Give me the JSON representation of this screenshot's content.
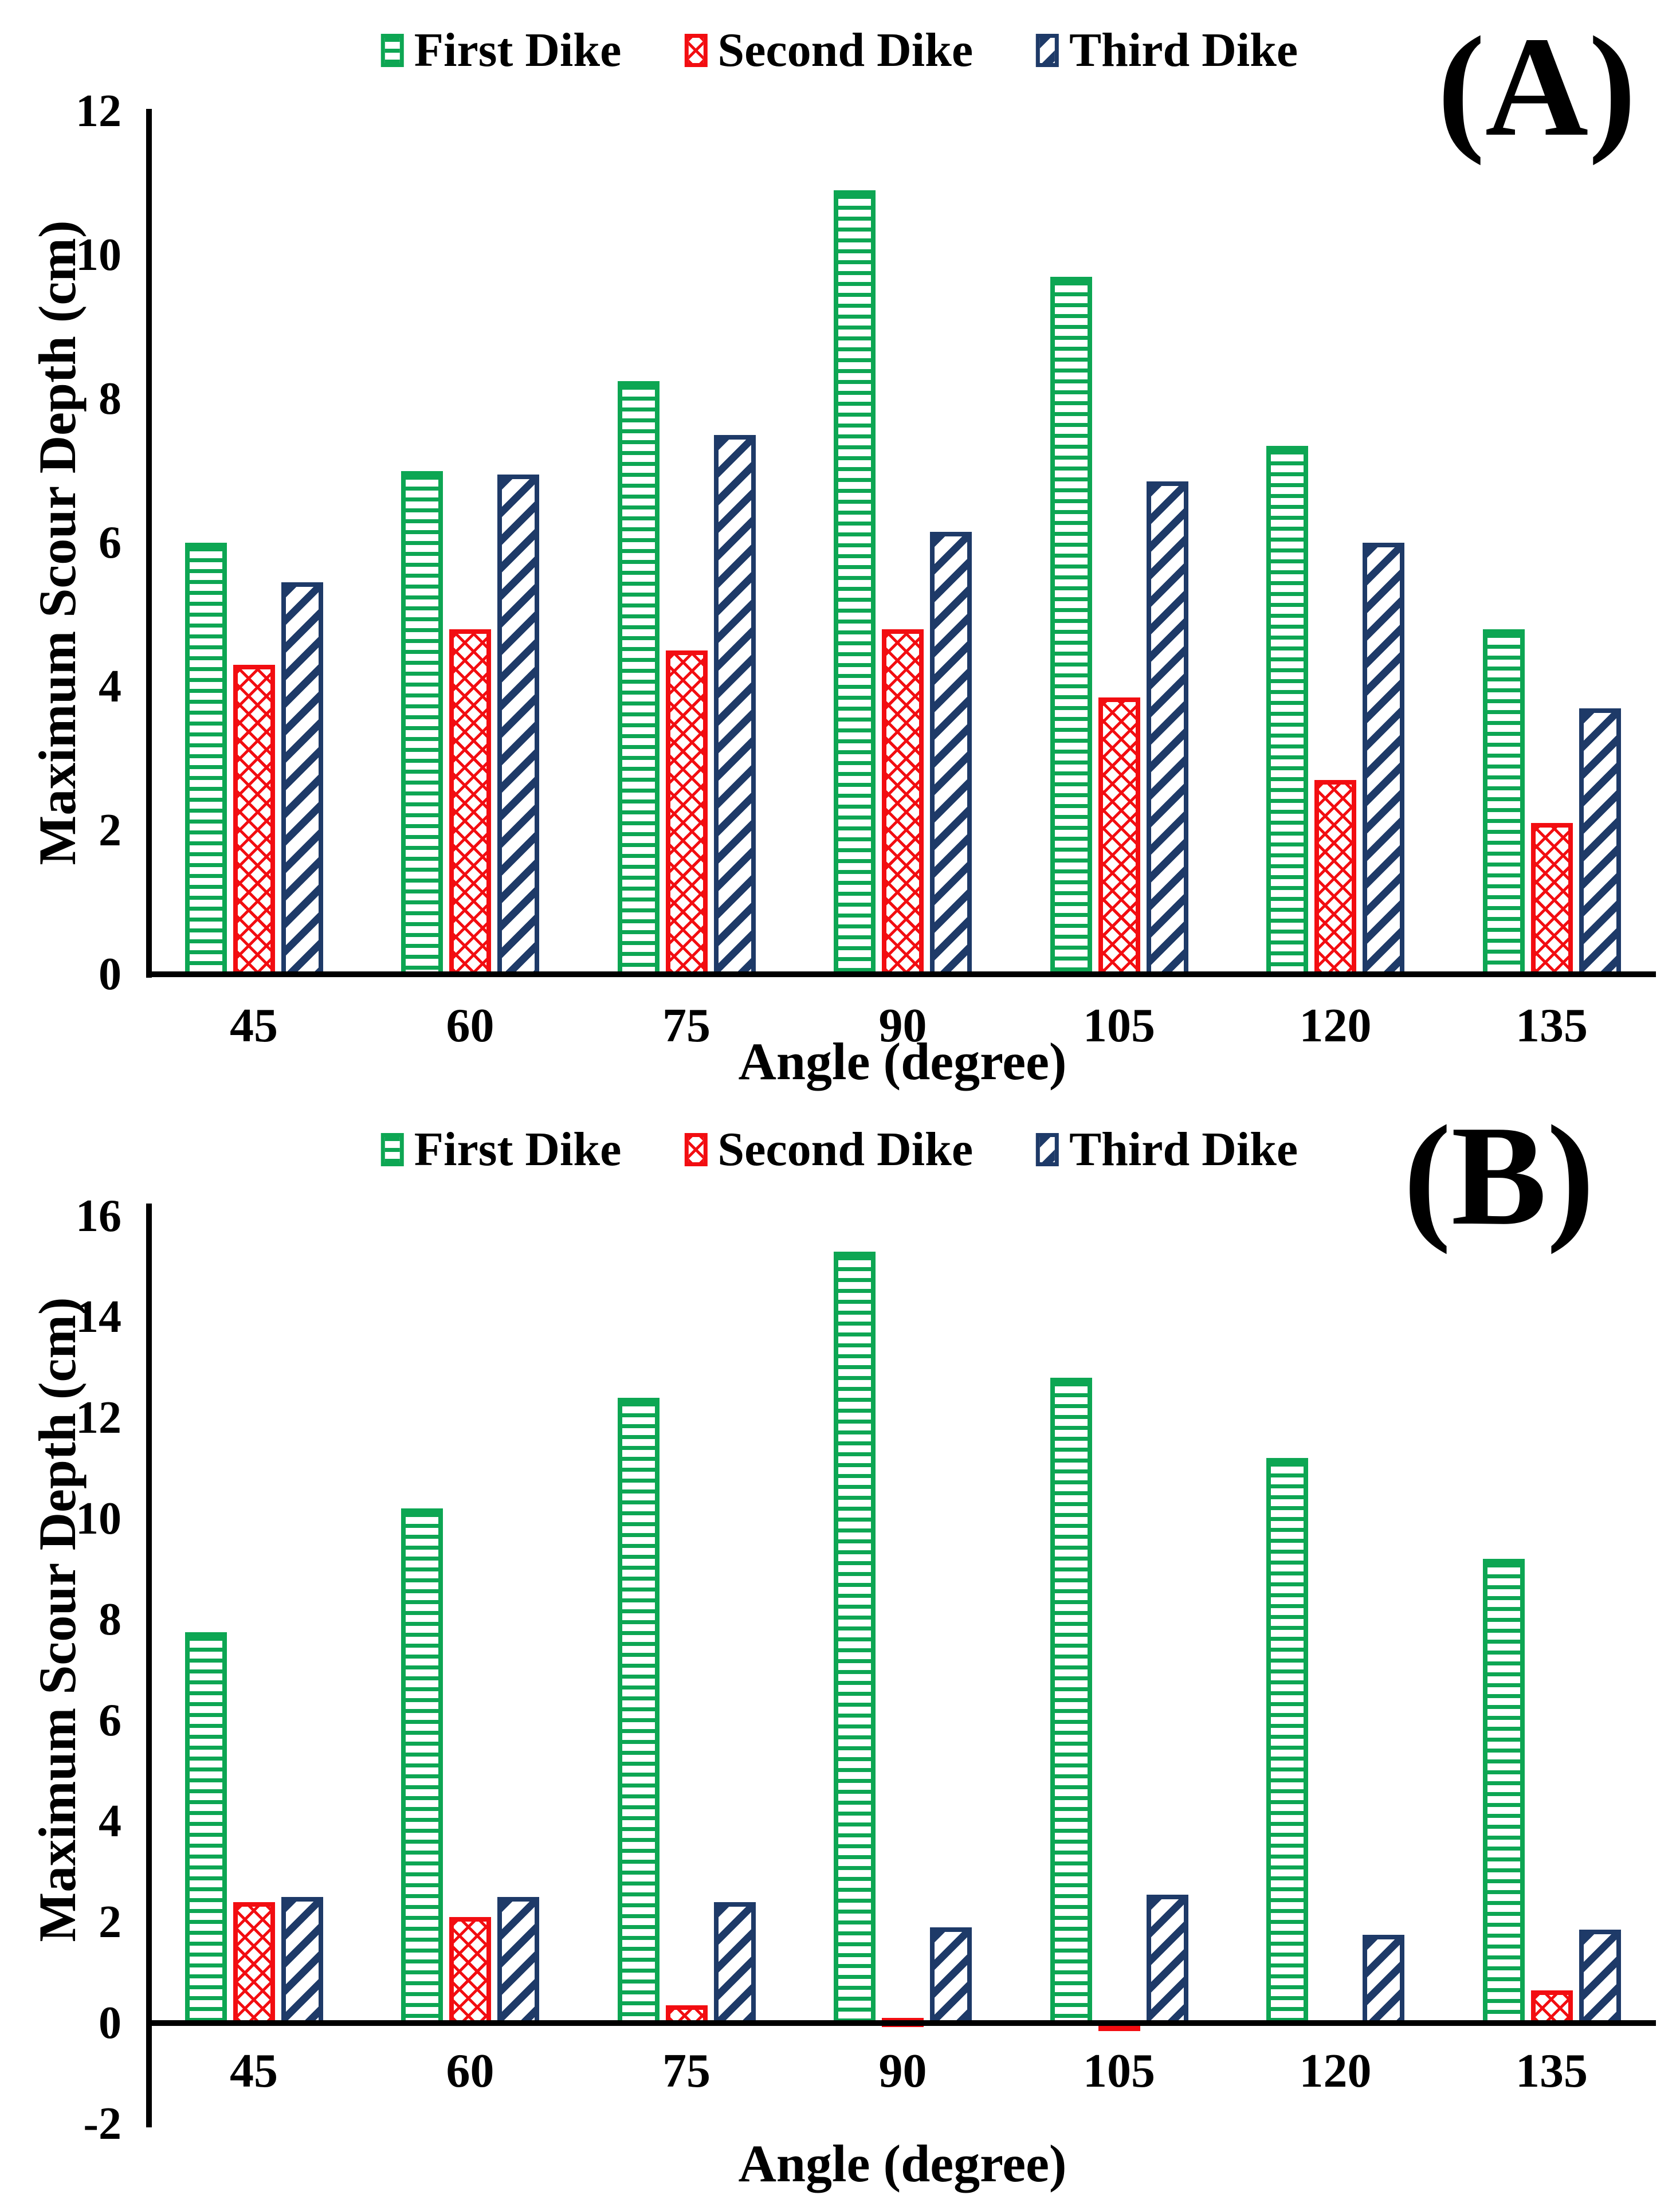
{
  "figure": {
    "background": "#ffffff",
    "text_color": "#000000"
  },
  "legend": {
    "items": [
      {
        "label": "First Dike",
        "color": "#0da653",
        "pattern": "horizontal-lines"
      },
      {
        "label": "Second Dike",
        "color": "#f20d11",
        "pattern": "diagonal-crosshatch"
      },
      {
        "label": "Third Dike",
        "color": "#1e3a68",
        "pattern": "diagonal-stripes"
      }
    ]
  },
  "chart_data": [
    {
      "type": "bar",
      "panel_label": "(A)",
      "xlabel": "Angle (degree)",
      "ylabel": "Maximum Scour Depth (cm)",
      "categories": [
        "45",
        "60",
        "75",
        "90",
        "105",
        "120",
        "135"
      ],
      "series": [
        {
          "name": "First Dike",
          "color": "#0da653",
          "pattern": "horizontal-lines",
          "values": [
            6.0,
            7.0,
            8.25,
            10.9,
            9.7,
            7.35,
            4.8
          ]
        },
        {
          "name": "Second Dike",
          "color": "#f20d11",
          "pattern": "diagonal-crosshatch",
          "values": [
            4.3,
            4.8,
            4.5,
            4.8,
            3.85,
            2.7,
            2.1
          ]
        },
        {
          "name": "Third Dike",
          "color": "#1e3a68",
          "pattern": "diagonal-stripes",
          "values": [
            5.45,
            6.95,
            7.5,
            6.15,
            6.85,
            6.0,
            3.7
          ]
        }
      ],
      "ylim": [
        0,
        12
      ],
      "yticks": [
        12,
        10,
        8,
        6,
        4,
        2,
        0
      ],
      "grid": false,
      "legend_position": "top-center"
    },
    {
      "type": "bar",
      "panel_label": "(B)",
      "xlabel": "Angle (degree)",
      "ylabel": "Maximum Scour Depth (cm)",
      "categories": [
        "45",
        "60",
        "75",
        "90",
        "105",
        "120",
        "135"
      ],
      "series": [
        {
          "name": "First Dike",
          "color": "#0da653",
          "pattern": "horizontal-lines",
          "values": [
            7.75,
            10.2,
            12.4,
            15.3,
            12.8,
            11.2,
            9.2
          ]
        },
        {
          "name": "Second Dike",
          "color": "#f20d11",
          "pattern": "diagonal-crosshatch",
          "values": [
            2.4,
            2.1,
            0.35,
            0.1,
            -0.15,
            0,
            0.65
          ]
        },
        {
          "name": "Third Dike",
          "color": "#1e3a68",
          "pattern": "diagonal-stripes",
          "values": [
            2.5,
            2.5,
            2.4,
            1.9,
            2.55,
            1.75,
            1.85
          ]
        }
      ],
      "ylim": [
        -2,
        16
      ],
      "yticks": [
        16,
        14,
        12,
        10,
        8,
        6,
        4,
        2,
        0,
        -2
      ],
      "grid": false,
      "legend_position": "top-center"
    }
  ]
}
